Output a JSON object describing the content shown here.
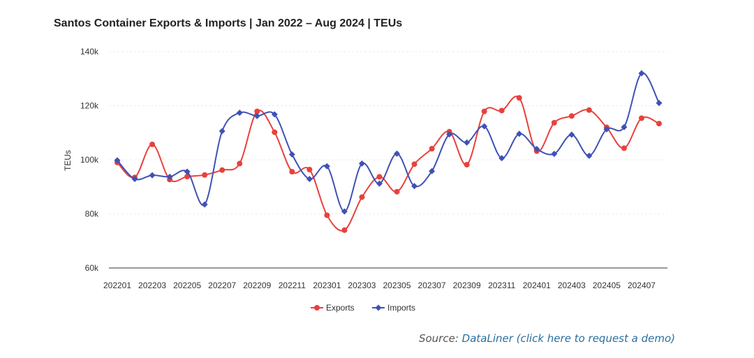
{
  "title": "Santos Container Exports & Imports | Jan 2022 – Aug 2024 | TEUs",
  "source": {
    "prefix": "Source:",
    "link_text": "DataLiner (click here to request a demo)"
  },
  "colors": {
    "exports": "#e8413c",
    "imports": "#3f51b5",
    "axis": "#333333",
    "grid": "#ececec"
  },
  "chart_data": {
    "type": "line",
    "ylabel": "TEUs",
    "ylim": [
      60000,
      140000
    ],
    "yticks": [
      60000,
      80000,
      100000,
      120000,
      140000
    ],
    "ytick_labels": [
      "60k",
      "80k",
      "100k",
      "120k",
      "140k"
    ],
    "x": [
      "202201",
      "202202",
      "202203",
      "202204",
      "202205",
      "202206",
      "202207",
      "202208",
      "202209",
      "202210",
      "202211",
      "202212",
      "202301",
      "202302",
      "202303",
      "202304",
      "202305",
      "202306",
      "202307",
      "202308",
      "202309",
      "202310",
      "202311",
      "202312",
      "202401",
      "202402",
      "202403",
      "202404",
      "202405",
      "202406",
      "202407",
      "202408"
    ],
    "xtick_labels": [
      "202201",
      "202203",
      "202205",
      "202207",
      "202209",
      "202211",
      "202301",
      "202303",
      "202305",
      "202307",
      "202309",
      "202311",
      "202401",
      "202403",
      "202405",
      "202407"
    ],
    "legend": "bottom-center",
    "series": [
      {
        "name": "Exports",
        "marker": "circle",
        "values": [
          99000,
          93500,
          105700,
          92700,
          93800,
          94400,
          96200,
          98600,
          117900,
          110200,
          95600,
          96400,
          79500,
          74000,
          86200,
          93700,
          88200,
          98400,
          104100,
          110400,
          98200,
          117900,
          118200,
          122900,
          103200,
          113700,
          116200,
          118400,
          112000,
          104300,
          115400,
          113400
        ]
      },
      {
        "name": "Imports",
        "marker": "diamond",
        "values": [
          99800,
          92900,
          94300,
          93700,
          95600,
          83500,
          110600,
          117400,
          116200,
          116800,
          102000,
          92900,
          97600,
          80900,
          98600,
          91200,
          102300,
          90300,
          95800,
          109400,
          106400,
          112400,
          100600,
          109600,
          104000,
          102200,
          109300,
          101500,
          111300,
          112100,
          132000,
          121000
        ]
      }
    ]
  }
}
